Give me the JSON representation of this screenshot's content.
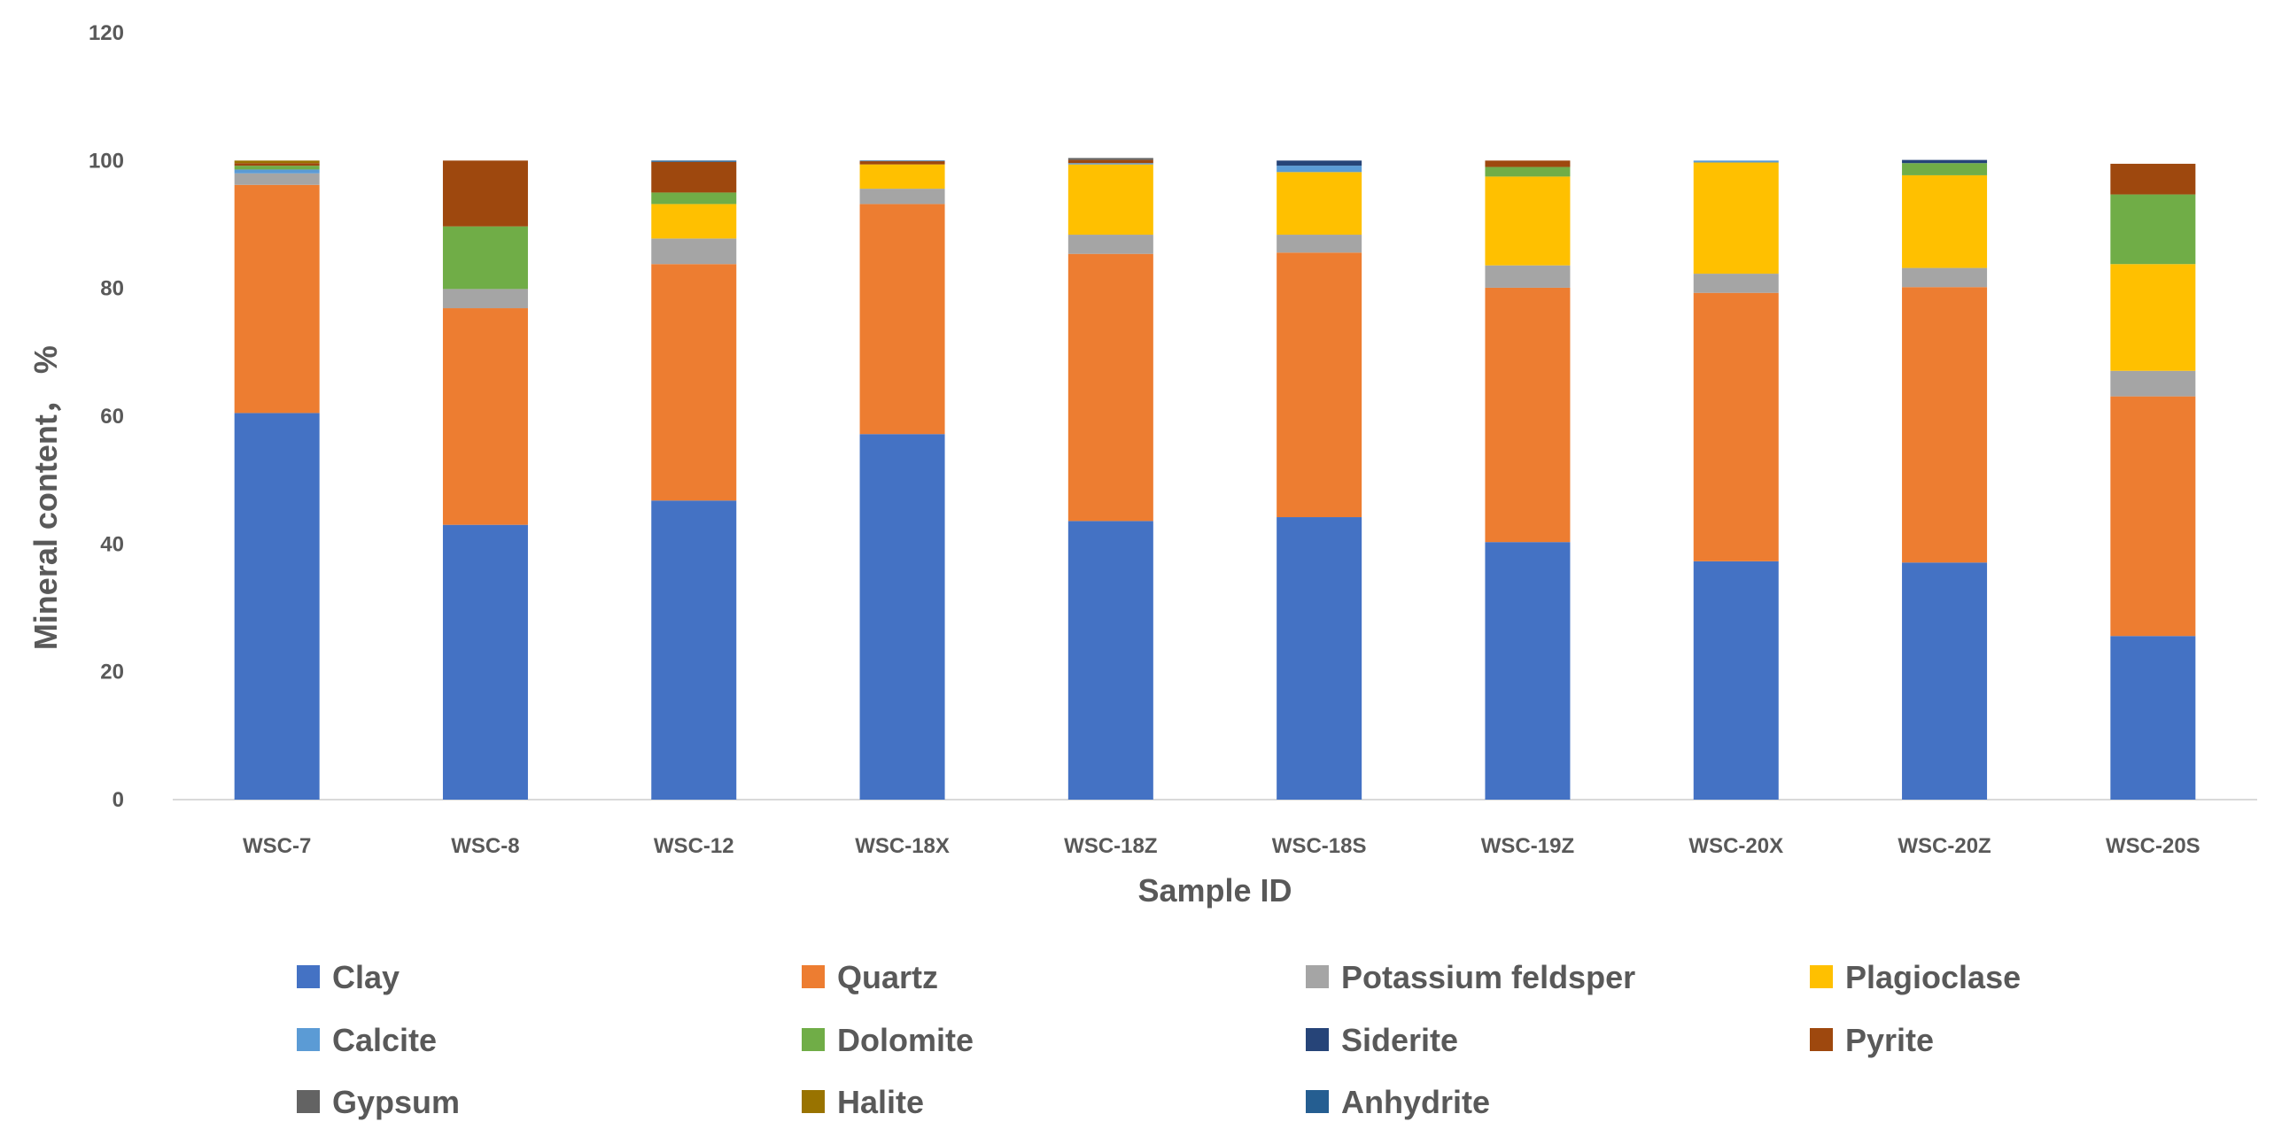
{
  "chart_data": {
    "type": "bar",
    "stacked": true,
    "title": "",
    "xlabel": "Sample ID",
    "ylabel": "Mineral content， %",
    "ylim": [
      0,
      120
    ],
    "yticks": [
      0,
      20,
      40,
      60,
      80,
      100,
      120
    ],
    "grid": false,
    "legend_position": "bottom",
    "categories": [
      "WSC-7",
      "WSC-8",
      "WSC-12",
      "WSC-18X",
      "WSC-18Z",
      "WSC-18S",
      "WSC-19Z",
      "WSC-20X",
      "WSC-20Z",
      "WSC-20S"
    ],
    "series": [
      {
        "name": "Clay",
        "color": "#4472C4",
        "values": [
          60.5,
          43.0,
          46.8,
          57.2,
          43.6,
          44.2,
          40.3,
          37.3,
          37.1,
          25.6
        ]
      },
      {
        "name": "Quartz",
        "color": "#ED7D31",
        "values": [
          35.7,
          33.9,
          37.0,
          36.0,
          41.8,
          41.4,
          39.8,
          42.0,
          43.1,
          37.5
        ]
      },
      {
        "name": "Potassium feldsper",
        "color": "#A5A5A5",
        "values": [
          1.8,
          3.0,
          4.0,
          2.4,
          3.0,
          2.8,
          3.5,
          3.0,
          3.0,
          4.0
        ]
      },
      {
        "name": "Plagioclase",
        "color": "#FFC000",
        "values": [
          0,
          0,
          5.4,
          3.8,
          11.0,
          9.8,
          13.9,
          17.4,
          14.5,
          16.7
        ]
      },
      {
        "name": "Calcite",
        "color": "#5B9BD5",
        "values": [
          0.6,
          0,
          0,
          0,
          0.2,
          1.0,
          0,
          0.3,
          0,
          0
        ]
      },
      {
        "name": "Dolomite",
        "color": "#70AD47",
        "values": [
          0.6,
          9.8,
          1.8,
          0,
          0,
          0,
          1.5,
          0,
          1.9,
          10.9
        ]
      },
      {
        "name": "Siderite",
        "color": "#264478",
        "values": [
          0,
          0,
          0,
          0,
          0,
          0.8,
          0,
          0,
          0.5,
          0
        ]
      },
      {
        "name": "Pyrite",
        "color": "#9E480E",
        "values": [
          0.4,
          10.3,
          4.8,
          0.5,
          0.5,
          0,
          1.0,
          0,
          0,
          4.8
        ]
      },
      {
        "name": "Gypsum",
        "color": "#636363",
        "values": [
          0,
          0,
          0,
          0,
          0.3,
          0,
          0,
          0,
          0,
          0
        ]
      },
      {
        "name": "Halite",
        "color": "#997300",
        "values": [
          0.4,
          0,
          0,
          0,
          0,
          0,
          0,
          0,
          0,
          0
        ]
      },
      {
        "name": "Anhydrite",
        "color": "#255E91",
        "values": [
          0,
          0,
          0.2,
          0.1,
          0,
          0,
          0,
          0,
          0,
          0
        ]
      }
    ]
  }
}
